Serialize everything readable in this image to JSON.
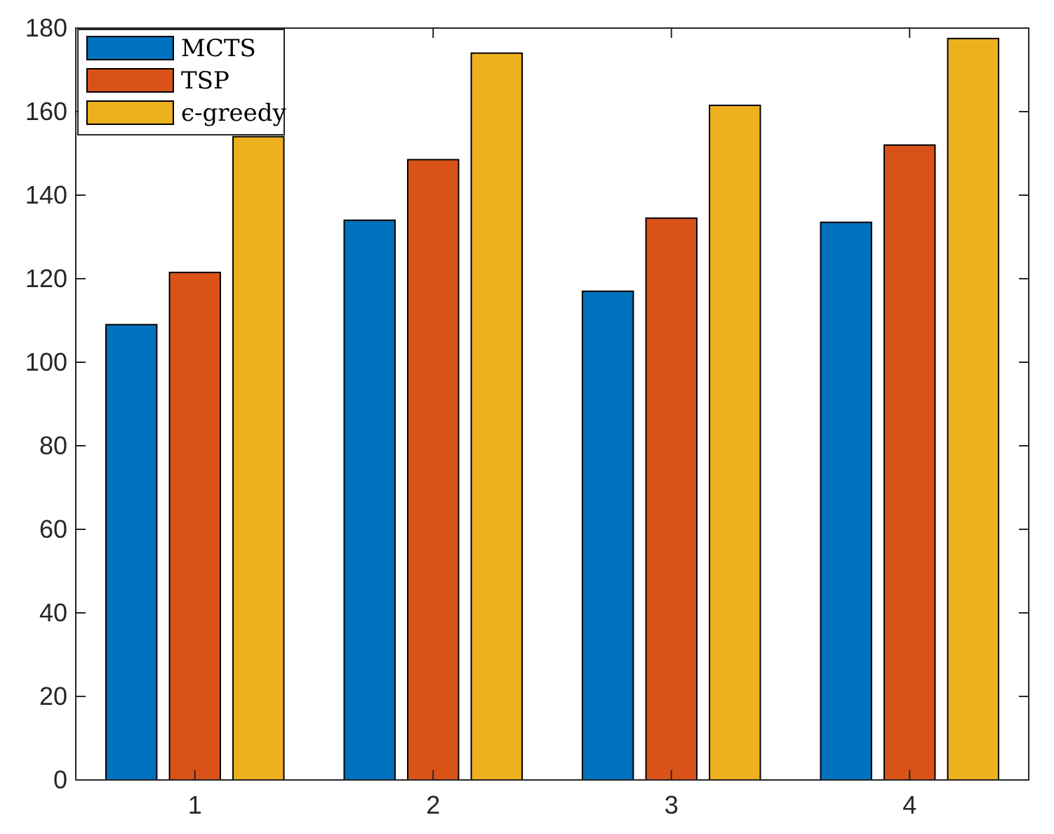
{
  "chart_data": {
    "type": "bar",
    "title": "",
    "xlabel": "",
    "ylabel": "",
    "categories": [
      "1",
      "2",
      "3",
      "4"
    ],
    "series": [
      {
        "name": "MCTS",
        "color": "#0072BD",
        "values": [
          109,
          134,
          117,
          133.5
        ]
      },
      {
        "name": "TSP",
        "color": "#D95319",
        "values": [
          121.5,
          148.5,
          134.5,
          152
        ]
      },
      {
        "name": "ϵ-greedy",
        "color": "#EDB120",
        "values": [
          154,
          174,
          161.5,
          177.5
        ]
      }
    ],
    "ylim": [
      0,
      180
    ],
    "yticks": [
      "0",
      "20",
      "40",
      "60",
      "80",
      "100",
      "120",
      "140",
      "160",
      "180"
    ],
    "grid": false,
    "legend_position": "top-left"
  }
}
